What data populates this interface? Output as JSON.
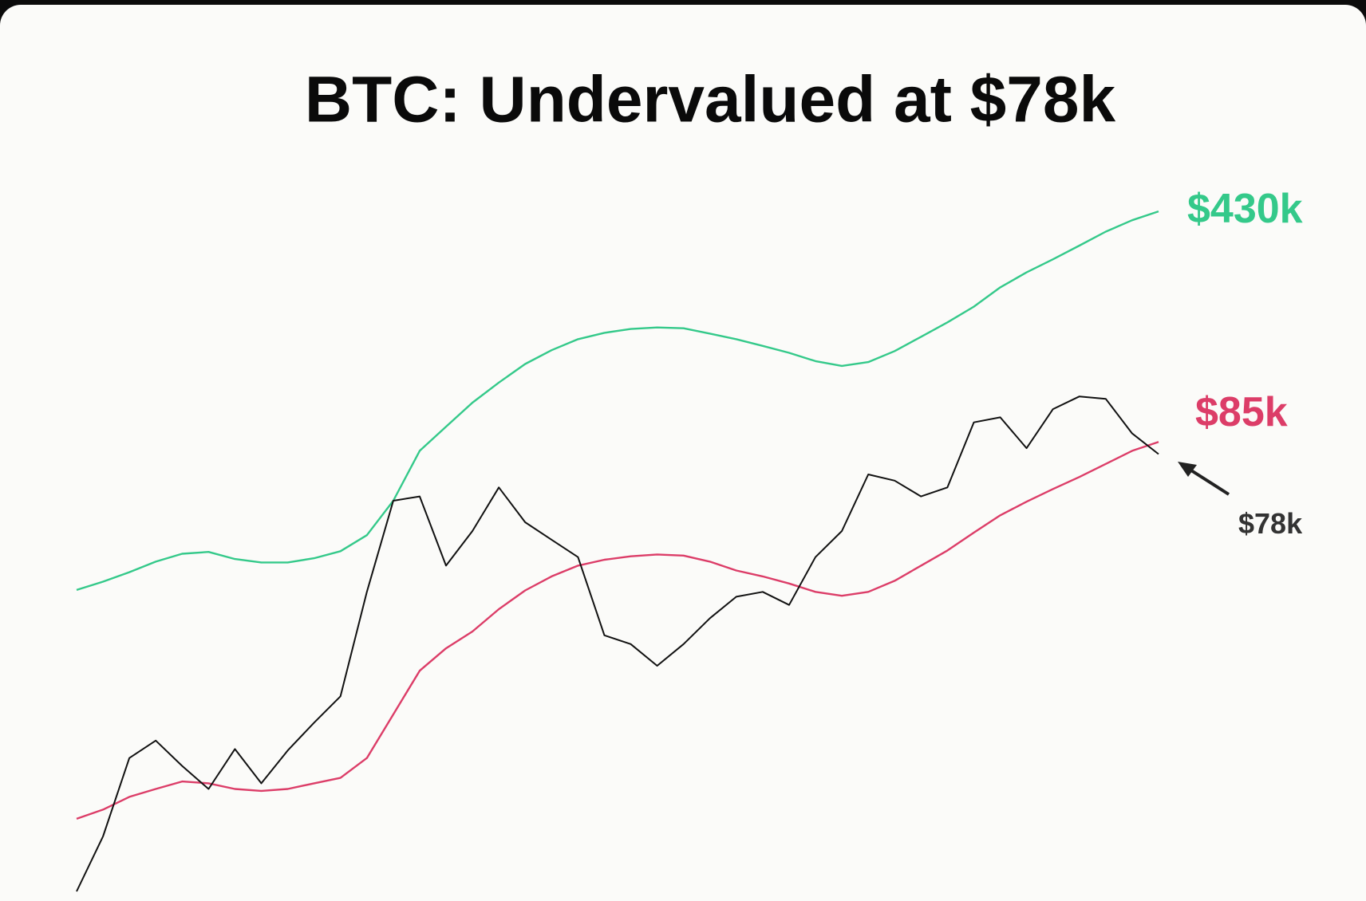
{
  "chart_data": {
    "type": "line",
    "title": "BTC: Undervalued at $78k",
    "log_scale": true,
    "ylim": [
      3.5,
      560
    ],
    "series": [
      {
        "color": "#34c98a",
        "values": [
          30,
          31.8,
          34,
          36.6,
          38.7,
          39.2,
          37.3,
          36.4,
          36.4,
          37.5,
          39.4,
          44.1,
          56.2,
          79.8,
          94.6,
          112,
          129,
          147,
          162,
          175,
          183,
          188,
          190,
          189,
          182,
          175,
          167,
          159,
          150,
          145,
          149,
          161,
          178,
          197,
          220,
          252,
          280,
          307,
          338,
          373,
          404,
          430
        ],
        "value_labels": [
          null,
          null,
          null,
          null,
          null,
          null,
          null,
          null,
          null,
          null,
          null,
          null,
          null,
          null,
          null,
          null,
          null,
          null,
          null,
          null,
          null,
          null,
          null,
          null,
          null,
          null,
          null,
          null,
          null,
          null,
          null,
          null,
          null,
          null,
          null,
          null,
          null,
          null,
          null,
          null,
          null,
          "$430k"
        ]
      },
      {
        "color": "#dc3d68",
        "values": [
          6.0,
          6.4,
          7.0,
          7.4,
          7.8,
          7.7,
          7.4,
          7.3,
          7.4,
          7.7,
          8.0,
          9.2,
          12.5,
          17.0,
          19.9,
          22.4,
          26.2,
          29.9,
          33.0,
          35.6,
          37.1,
          38.0,
          38.5,
          38.2,
          36.6,
          34.4,
          33.0,
          31.4,
          29.6,
          28.8,
          29.6,
          32.0,
          35.6,
          39.6,
          44.9,
          50.7,
          55.8,
          61.0,
          66.4,
          72.8,
          79.8,
          85
        ],
        "value_labels": [
          null,
          null,
          null,
          null,
          null,
          null,
          null,
          null,
          null,
          null,
          null,
          null,
          null,
          null,
          null,
          null,
          null,
          null,
          null,
          null,
          null,
          null,
          null,
          null,
          null,
          null,
          null,
          null,
          null,
          null,
          null,
          null,
          null,
          null,
          null,
          null,
          null,
          null,
          null,
          null,
          null,
          "$85k"
        ]
      },
      {
        "color": "#111111",
        "values": [
          3.6,
          5.3,
          9.2,
          10.4,
          8.7,
          7.4,
          9.8,
          7.7,
          9.7,
          11.8,
          14.2,
          29.6,
          56.2,
          57.9,
          35.6,
          45.4,
          61.7,
          48.3,
          42.7,
          37.8,
          21.8,
          20.5,
          17.6,
          20.5,
          24.6,
          28.6,
          29.6,
          27.0,
          37.8,
          45.4,
          67.6,
          64.7,
          57.9,
          61.7,
          97.5,
          101,
          81.3,
          107,
          117,
          115,
          90.2,
          78
        ],
        "value_labels": [
          null,
          null,
          null,
          null,
          null,
          null,
          null,
          null,
          null,
          null,
          null,
          null,
          null,
          null,
          null,
          null,
          null,
          null,
          null,
          null,
          null,
          null,
          null,
          null,
          null,
          null,
          null,
          null,
          null,
          null,
          null,
          null,
          null,
          null,
          null,
          null,
          null,
          null,
          null,
          null,
          null,
          "$78k"
        ]
      }
    ]
  }
}
